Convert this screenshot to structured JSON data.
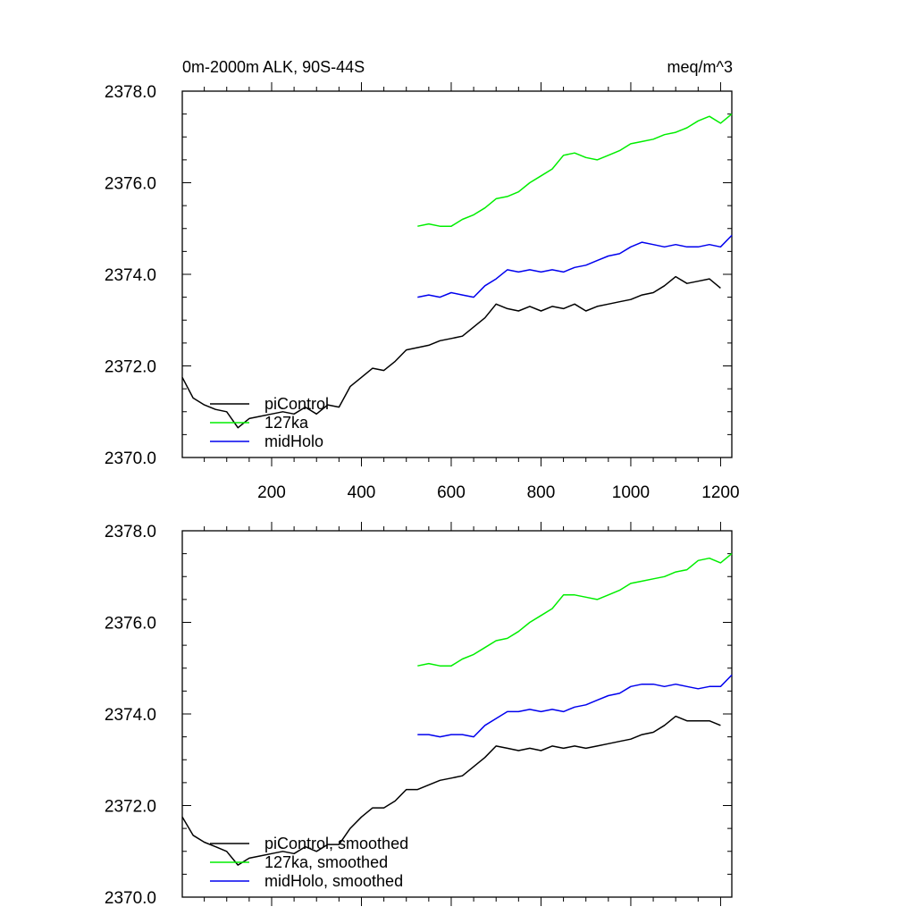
{
  "chart_data": [
    {
      "type": "line",
      "title": "0m-2000m ALK, 90S-44S",
      "units": "meq/m^3",
      "xlabel": "",
      "ylabel": "",
      "xlim": [
        1,
        1225
      ],
      "ylim": [
        2370.0,
        2378.0
      ],
      "xticks": [
        200,
        400,
        600,
        800,
        1000,
        1200
      ],
      "xticklabels": [
        "200",
        "400",
        "600",
        "800",
        "1000",
        "1200"
      ],
      "yticks": [
        2370,
        2372,
        2374,
        2376,
        2378
      ],
      "yticklabels": [
        "2370.0",
        "2372.0",
        "2374.0",
        "2376.0",
        "2378.0"
      ],
      "legend_position": "bottom-left",
      "series": [
        {
          "name": "piControl",
          "color": "#000000",
          "x": [
            1,
            25,
            50,
            75,
            100,
            125,
            150,
            175,
            200,
            225,
            250,
            275,
            300,
            325,
            350,
            375,
            400,
            425,
            450,
            475,
            500,
            525,
            550,
            575,
            600,
            625,
            650,
            675,
            700,
            725,
            750,
            775,
            800,
            825,
            850,
            875,
            900,
            925,
            950,
            975,
            1000,
            1025,
            1050,
            1075,
            1100,
            1125,
            1150,
            1175,
            1200
          ],
          "values": [
            2371.75,
            2371.3,
            2371.15,
            2371.05,
            2371.0,
            2370.65,
            2370.85,
            2370.9,
            2370.95,
            2371.0,
            2370.95,
            2371.1,
            2370.95,
            2371.15,
            2371.1,
            2371.55,
            2371.75,
            2371.95,
            2371.9,
            2372.1,
            2372.35,
            2372.4,
            2372.45,
            2372.55,
            2372.6,
            2372.65,
            2372.85,
            2373.05,
            2373.35,
            2373.25,
            2373.2,
            2373.3,
            2373.2,
            2373.3,
            2373.25,
            2373.35,
            2373.2,
            2373.3,
            2373.35,
            2373.4,
            2373.45,
            2373.55,
            2373.6,
            2373.75,
            2373.95,
            2373.8,
            2373.85,
            2373.9,
            2373.7
          ]
        },
        {
          "name": "127ka",
          "color": "#00ee00",
          "x": [
            525,
            550,
            575,
            600,
            625,
            650,
            675,
            700,
            725,
            750,
            775,
            800,
            825,
            850,
            875,
            900,
            925,
            950,
            975,
            1000,
            1025,
            1050,
            1075,
            1100,
            1125,
            1150,
            1175,
            1200,
            1225
          ],
          "values": [
            2375.05,
            2375.1,
            2375.05,
            2375.05,
            2375.2,
            2375.3,
            2375.45,
            2375.65,
            2375.7,
            2375.8,
            2376.0,
            2376.15,
            2376.3,
            2376.6,
            2376.65,
            2376.55,
            2376.5,
            2376.6,
            2376.7,
            2376.85,
            2376.9,
            2376.95,
            2377.05,
            2377.1,
            2377.2,
            2377.35,
            2377.45,
            2377.3,
            2377.5
          ]
        },
        {
          "name": "midHolo",
          "color": "#0000ee",
          "x": [
            525,
            550,
            575,
            600,
            625,
            650,
            675,
            700,
            725,
            750,
            775,
            800,
            825,
            850,
            875,
            900,
            925,
            950,
            975,
            1000,
            1025,
            1050,
            1075,
            1100,
            1125,
            1150,
            1175,
            1200,
            1225
          ],
          "values": [
            2373.5,
            2373.55,
            2373.5,
            2373.6,
            2373.55,
            2373.5,
            2373.75,
            2373.9,
            2374.1,
            2374.05,
            2374.1,
            2374.05,
            2374.1,
            2374.05,
            2374.15,
            2374.2,
            2374.3,
            2374.4,
            2374.45,
            2374.6,
            2374.7,
            2374.65,
            2374.6,
            2374.65,
            2374.6,
            2374.6,
            2374.65,
            2374.6,
            2374.85
          ]
        }
      ]
    },
    {
      "type": "line",
      "title": "",
      "xlabel": "",
      "ylabel": "",
      "xlim": [
        1,
        1225
      ],
      "ylim": [
        2370.0,
        2378.0
      ],
      "xticks": [
        200,
        400,
        600,
        800,
        1000,
        1200
      ],
      "yticks": [
        2370,
        2372,
        2374,
        2376,
        2378
      ],
      "yticklabels": [
        "2370.0",
        "2372.0",
        "2374.0",
        "2376.0",
        "2378.0"
      ],
      "legend_position": "bottom-left",
      "series": [
        {
          "name": "piControl, smoothed",
          "color": "#000000",
          "x": [
            1,
            25,
            50,
            75,
            100,
            125,
            150,
            175,
            200,
            225,
            250,
            275,
            300,
            325,
            350,
            375,
            400,
            425,
            450,
            475,
            500,
            525,
            550,
            575,
            600,
            625,
            650,
            675,
            700,
            725,
            750,
            775,
            800,
            825,
            850,
            875,
            900,
            925,
            950,
            975,
            1000,
            1025,
            1050,
            1075,
            1100,
            1125,
            1150,
            1175,
            1200
          ],
          "values": [
            2371.75,
            2371.35,
            2371.2,
            2371.1,
            2371.0,
            2370.7,
            2370.85,
            2370.9,
            2370.95,
            2371.0,
            2370.95,
            2371.1,
            2371.0,
            2371.15,
            2371.15,
            2371.5,
            2371.75,
            2371.95,
            2371.95,
            2372.1,
            2372.35,
            2372.35,
            2372.45,
            2372.55,
            2372.6,
            2372.65,
            2372.85,
            2373.05,
            2373.3,
            2373.25,
            2373.2,
            2373.25,
            2373.2,
            2373.3,
            2373.25,
            2373.3,
            2373.25,
            2373.3,
            2373.35,
            2373.4,
            2373.45,
            2373.55,
            2373.6,
            2373.75,
            2373.95,
            2373.85,
            2373.85,
            2373.85,
            2373.75
          ]
        },
        {
          "name": "127ka, smoothed",
          "color": "#00ee00",
          "x": [
            525,
            550,
            575,
            600,
            625,
            650,
            675,
            700,
            725,
            750,
            775,
            800,
            825,
            850,
            875,
            900,
            925,
            950,
            975,
            1000,
            1025,
            1050,
            1075,
            1100,
            1125,
            1150,
            1175,
            1200,
            1225
          ],
          "values": [
            2375.05,
            2375.1,
            2375.05,
            2375.05,
            2375.2,
            2375.3,
            2375.45,
            2375.6,
            2375.65,
            2375.8,
            2376.0,
            2376.15,
            2376.3,
            2376.6,
            2376.6,
            2376.55,
            2376.5,
            2376.6,
            2376.7,
            2376.85,
            2376.9,
            2376.95,
            2377.0,
            2377.1,
            2377.15,
            2377.35,
            2377.4,
            2377.3,
            2377.5
          ]
        },
        {
          "name": "midHolo, smoothed",
          "color": "#0000ee",
          "x": [
            525,
            550,
            575,
            600,
            625,
            650,
            675,
            700,
            725,
            750,
            775,
            800,
            825,
            850,
            875,
            900,
            925,
            950,
            975,
            1000,
            1025,
            1050,
            1075,
            1100,
            1125,
            1150,
            1175,
            1200,
            1225
          ],
          "values": [
            2373.55,
            2373.55,
            2373.5,
            2373.55,
            2373.55,
            2373.5,
            2373.75,
            2373.9,
            2374.05,
            2374.05,
            2374.1,
            2374.05,
            2374.1,
            2374.05,
            2374.15,
            2374.2,
            2374.3,
            2374.4,
            2374.45,
            2374.6,
            2374.65,
            2374.65,
            2374.6,
            2374.65,
            2374.6,
            2374.55,
            2374.6,
            2374.6,
            2374.85
          ]
        }
      ]
    }
  ]
}
